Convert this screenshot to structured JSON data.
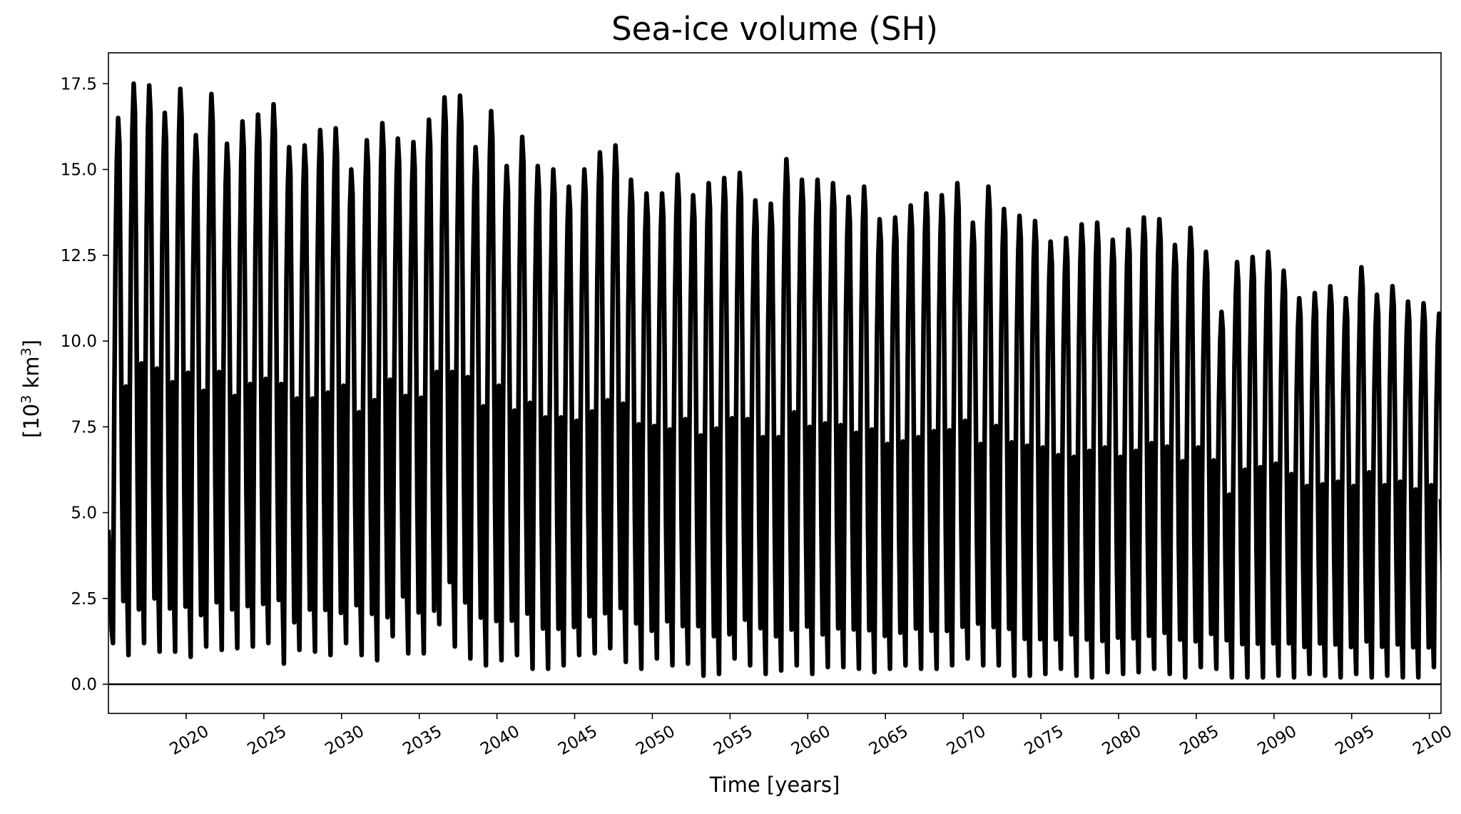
{
  "chart_data": {
    "type": "line",
    "title": "Sea-ice volume (SH)",
    "xlabel": "Time [years]",
    "ylabel_base": "[10",
    "ylabel_sup1": "3",
    "ylabel_mid": " km",
    "ylabel_sup2": "3",
    "ylabel_end": "]",
    "xlim": [
      2015.0,
      2100.75
    ],
    "ylim": [
      -0.85,
      18.4
    ],
    "xticks": [
      2020,
      2025,
      2030,
      2035,
      2040,
      2045,
      2050,
      2055,
      2060,
      2065,
      2070,
      2075,
      2080,
      2085,
      2090,
      2095,
      2100
    ],
    "xtick_labels": [
      "2020",
      "2025",
      "2030",
      "2035",
      "2040",
      "2045",
      "2050",
      "2055",
      "2060",
      "2065",
      "2070",
      "2075",
      "2080",
      "2085",
      "2090",
      "2095",
      "2100"
    ],
    "yticks": [
      0.0,
      2.5,
      5.0,
      7.5,
      10.0,
      12.5,
      15.0,
      17.5
    ],
    "ytick_labels": [
      "0.0",
      "2.5",
      "5.0",
      "7.5",
      "10.0",
      "12.5",
      "15.0",
      "17.5"
    ],
    "reference_line_y": 0.0,
    "line_color": "#000000",
    "series": [
      {
        "start_year": 2015,
        "start_month": 1,
        "annual_max": [
          16.5,
          17.5,
          17.45,
          16.65,
          17.35,
          16.0,
          17.2,
          15.75,
          16.4,
          16.6,
          16.9,
          15.65,
          15.7,
          16.15,
          16.2,
          15.0,
          15.85,
          16.35,
          15.9,
          15.8,
          16.45,
          17.1,
          17.15,
          15.65,
          16.7,
          15.1,
          15.95,
          15.1,
          15.0,
          14.5,
          15.0,
          15.5,
          15.7,
          14.7,
          14.3,
          14.3,
          14.85,
          14.25,
          14.6,
          14.75,
          14.9,
          14.1,
          14.0,
          15.3,
          14.7,
          14.7,
          14.6,
          14.2,
          14.5,
          13.55,
          13.6,
          13.95,
          14.3,
          14.25,
          14.6,
          13.45,
          14.5,
          13.85,
          13.65,
          13.5,
          12.9,
          13.0,
          13.4,
          13.45,
          12.95,
          13.25,
          13.6,
          13.55,
          12.8,
          13.3,
          12.6,
          10.85,
          12.3,
          12.45,
          12.6,
          12.05,
          11.25,
          11.4,
          11.6,
          11.25,
          12.15,
          11.35,
          11.6,
          11.15,
          11.1,
          10.8
        ],
        "annual_min": [
          1.2,
          0.85,
          1.2,
          0.95,
          0.95,
          0.8,
          1.1,
          1.0,
          1.05,
          1.1,
          1.2,
          0.6,
          1.0,
          0.95,
          0.85,
          1.2,
          0.85,
          0.7,
          1.4,
          0.9,
          0.9,
          1.75,
          1.1,
          0.75,
          0.55,
          0.7,
          0.85,
          0.45,
          0.45,
          0.55,
          0.85,
          0.9,
          1.05,
          0.65,
          0.45,
          0.75,
          0.55,
          0.6,
          0.25,
          0.3,
          0.75,
          0.55,
          0.3,
          0.4,
          0.55,
          0.3,
          0.5,
          0.5,
          0.45,
          0.35,
          0.45,
          0.55,
          0.45,
          0.45,
          0.55,
          0.75,
          0.55,
          0.55,
          0.25,
          0.25,
          0.3,
          0.45,
          0.25,
          0.2,
          0.35,
          0.3,
          0.35,
          0.45,
          0.3,
          0.2,
          0.5,
          0.45,
          0.2,
          0.2,
          0.2,
          0.25,
          0.2,
          0.3,
          0.25,
          0.2,
          0.3,
          0.2,
          0.25,
          0.2,
          0.2,
          0.5
        ],
        "initial_value": 4.5,
        "final_value": 5.4
      }
    ]
  }
}
